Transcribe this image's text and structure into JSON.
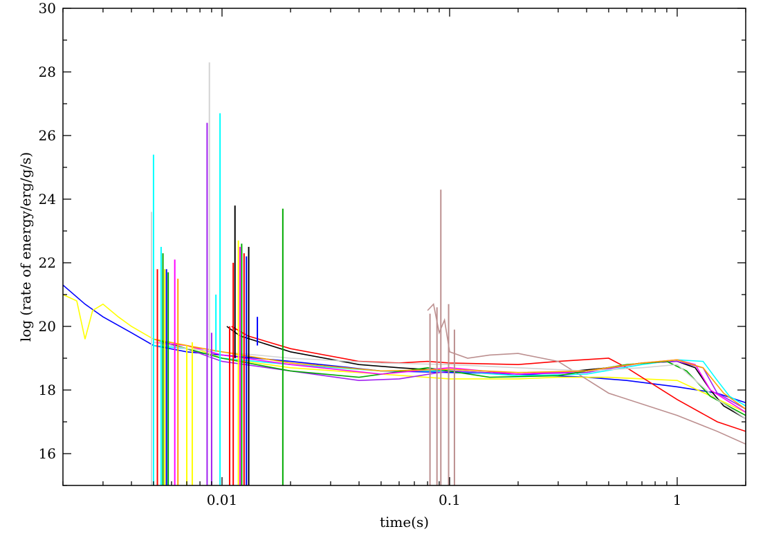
{
  "chart_data": {
    "type": "line",
    "title": "",
    "xlabel": "time(s)",
    "ylabel": "log (rate of energy/erg/g/s)",
    "xscale": "log",
    "xlim": [
      0.002,
      2
    ],
    "ylim": [
      15,
      30
    ],
    "xticks": [
      {
        "value": 0.01,
        "label": "0.01"
      },
      {
        "value": 0.1,
        "label": "0.1"
      },
      {
        "value": 1,
        "label": "1"
      }
    ],
    "yticks": [
      {
        "value": 16,
        "label": "16"
      },
      {
        "value": 18,
        "label": "18"
      },
      {
        "value": 20,
        "label": "20"
      },
      {
        "value": 22,
        "label": "22"
      },
      {
        "value": 24,
        "label": "24"
      },
      {
        "value": 26,
        "label": "26"
      },
      {
        "value": 28,
        "label": "28"
      },
      {
        "value": 30,
        "label": "30"
      }
    ],
    "grid": false,
    "legend": "none",
    "series": [
      {
        "color": "#0000ff",
        "x": [
          0.002,
          0.0025,
          0.003,
          0.004,
          0.005,
          0.007,
          0.01,
          0.02,
          0.05,
          0.1,
          0.2,
          0.4,
          0.6,
          1.0,
          1.5,
          2.0
        ],
        "y": [
          21.3,
          20.7,
          20.3,
          19.8,
          19.4,
          19.2,
          19.1,
          18.9,
          18.6,
          18.55,
          18.5,
          18.4,
          18.3,
          18.1,
          17.9,
          17.6
        ]
      },
      {
        "color": "#ffff00",
        "x": [
          0.002,
          0.0023,
          0.0025,
          0.0027,
          0.003,
          0.0035,
          0.004,
          0.005,
          0.007,
          0.01,
          0.02,
          0.05,
          0.1,
          0.2,
          0.3,
          0.5,
          1.0,
          2.0
        ],
        "y": [
          21.0,
          20.8,
          19.6,
          20.5,
          20.7,
          20.3,
          20.0,
          19.6,
          19.4,
          19.0,
          18.7,
          18.5,
          18.35,
          18.35,
          18.4,
          18.4,
          18.3,
          17.3
        ]
      },
      {
        "color": "#000000",
        "x": [
          0.0105,
          0.012,
          0.02,
          0.04,
          0.06,
          0.1,
          0.2,
          0.3,
          0.5,
          0.7,
          1.0,
          1.2,
          1.4,
          1.6,
          2.0
        ],
        "y": [
          20.0,
          19.7,
          19.2,
          18.8,
          18.7,
          18.6,
          18.5,
          18.55,
          18.7,
          18.85,
          18.9,
          18.7,
          18.0,
          17.5,
          17.1
        ]
      },
      {
        "color": "#ff0000",
        "x": [
          0.011,
          0.013,
          0.02,
          0.04,
          0.06,
          0.08,
          0.1,
          0.2,
          0.3,
          0.5,
          0.6,
          1.0,
          1.5,
          2.0
        ],
        "y": [
          20.0,
          19.7,
          19.3,
          18.9,
          18.85,
          18.9,
          18.85,
          18.8,
          18.9,
          19.0,
          18.7,
          17.7,
          17.0,
          16.7
        ]
      },
      {
        "color": "#bc8f8f",
        "x": [
          0.08,
          0.085,
          0.09,
          0.095,
          0.1,
          0.12,
          0.15,
          0.2,
          0.3,
          0.5,
          1.0,
          1.5,
          2.0
        ],
        "y": [
          20.5,
          20.7,
          19.8,
          20.2,
          19.2,
          19.0,
          19.1,
          19.15,
          18.9,
          17.9,
          17.2,
          16.7,
          16.3
        ]
      },
      {
        "color": "#00ffff",
        "x": [
          0.005,
          0.007,
          0.01,
          0.02,
          0.05,
          0.1,
          0.2,
          0.4,
          0.7,
          1.0,
          1.3,
          1.5,
          1.7,
          2.0
        ],
        "y": [
          19.4,
          19.3,
          19.0,
          18.8,
          18.6,
          18.6,
          18.45,
          18.5,
          18.8,
          18.95,
          18.9,
          18.3,
          17.8,
          17.5
        ]
      },
      {
        "color": "#a020f0",
        "x": [
          0.005,
          0.007,
          0.01,
          0.02,
          0.04,
          0.06,
          0.1,
          0.2,
          0.4,
          0.7,
          1.0,
          1.3,
          1.5,
          2.0
        ],
        "y": [
          19.5,
          19.3,
          18.9,
          18.6,
          18.3,
          18.35,
          18.6,
          18.5,
          18.55,
          18.85,
          18.9,
          18.7,
          17.9,
          17.4
        ]
      },
      {
        "color": "#00aa00",
        "x": [
          0.005,
          0.007,
          0.01,
          0.02,
          0.04,
          0.08,
          0.15,
          0.3,
          0.6,
          0.9,
          1.1,
          1.4,
          2.0
        ],
        "y": [
          19.6,
          19.3,
          19.0,
          18.6,
          18.4,
          18.7,
          18.4,
          18.45,
          18.8,
          18.9,
          18.6,
          17.8,
          17.2
        ]
      },
      {
        "color": "#ff00ff",
        "x": [
          0.005,
          0.007,
          0.01,
          0.02,
          0.05,
          0.1,
          0.2,
          0.4,
          0.7,
          1.0,
          1.2,
          1.4,
          2.0
        ],
        "y": [
          19.5,
          19.4,
          19.1,
          18.8,
          18.5,
          18.7,
          18.5,
          18.6,
          18.85,
          18.95,
          18.8,
          18.0,
          17.3
        ]
      },
      {
        "color": "#d3d3d3",
        "x": [
          0.005,
          0.007,
          0.01,
          0.02,
          0.05,
          0.1,
          0.2,
          0.4,
          0.7,
          1.0,
          1.5,
          2.0
        ],
        "y": [
          19.5,
          19.3,
          19.2,
          19.0,
          18.85,
          18.8,
          18.7,
          18.6,
          18.7,
          18.8,
          17.7,
          17.1
        ]
      },
      {
        "color": "#ffa500",
        "x": [
          0.005,
          0.007,
          0.01,
          0.02,
          0.05,
          0.1,
          0.2,
          0.4,
          0.7,
          1.0,
          1.3,
          1.6,
          2.0
        ],
        "y": [
          19.6,
          19.4,
          19.2,
          18.85,
          18.6,
          18.65,
          18.55,
          18.6,
          18.85,
          18.95,
          18.7,
          17.9,
          17.4
        ]
      }
    ],
    "spikes": [
      {
        "color": "#d3d3d3",
        "x": 0.0049,
        "y1": 15,
        "y2": 23.6
      },
      {
        "color": "#00ffff",
        "x": 0.005,
        "y1": 15,
        "y2": 25.4
      },
      {
        "color": "#ff0000",
        "x": 0.0052,
        "y1": 15,
        "y2": 21.8
      },
      {
        "color": "#00ffff",
        "x": 0.0054,
        "y1": 15,
        "y2": 22.5
      },
      {
        "color": "#00aa00",
        "x": 0.0055,
        "y1": 15,
        "y2": 22.3
      },
      {
        "color": "#ffff00",
        "x": 0.0056,
        "y1": 15,
        "y2": 21.8
      },
      {
        "color": "#0000ff",
        "x": 0.0057,
        "y1": 15,
        "y2": 21.8
      },
      {
        "color": "#00aa00",
        "x": 0.0058,
        "y1": 15,
        "y2": 21.7
      },
      {
        "color": "#ff00ff",
        "x": 0.0062,
        "y1": 15,
        "y2": 22.1
      },
      {
        "color": "#ffa500",
        "x": 0.0064,
        "y1": 15,
        "y2": 21.5
      },
      {
        "color": "#ffff00",
        "x": 0.007,
        "y1": 15,
        "y2": 19.4
      },
      {
        "color": "#ffff00",
        "x": 0.0074,
        "y1": 15,
        "y2": 19.5
      },
      {
        "color": "#a020f0",
        "x": 0.0086,
        "y1": 15,
        "y2": 26.4
      },
      {
        "color": "#d3d3d3",
        "x": 0.0088,
        "y1": 19.0,
        "y2": 28.3
      },
      {
        "color": "#a020f0",
        "x": 0.009,
        "y1": 15,
        "y2": 19.8
      },
      {
        "color": "#00ffff",
        "x": 0.0094,
        "y1": 19.2,
        "y2": 21.0
      },
      {
        "color": "#00ffff",
        "x": 0.0098,
        "y1": 15,
        "y2": 26.7
      },
      {
        "color": "#ff0000",
        "x": 0.0108,
        "y1": 15,
        "y2": 20.0
      },
      {
        "color": "#ff0000",
        "x": 0.0112,
        "y1": 15,
        "y2": 22.0
      },
      {
        "color": "#000000",
        "x": 0.0114,
        "y1": 19.0,
        "y2": 23.8
      },
      {
        "color": "#ffff00",
        "x": 0.0118,
        "y1": 15,
        "y2": 22.7
      },
      {
        "color": "#ff00ff",
        "x": 0.012,
        "y1": 15,
        "y2": 22.5
      },
      {
        "color": "#00aa00",
        "x": 0.0122,
        "y1": 15,
        "y2": 22.6
      },
      {
        "color": "#ff0000",
        "x": 0.0125,
        "y1": 15,
        "y2": 22.3
      },
      {
        "color": "#0000ff",
        "x": 0.0128,
        "y1": 15,
        "y2": 22.2
      },
      {
        "color": "#000000",
        "x": 0.0131,
        "y1": 15,
        "y2": 22.5
      },
      {
        "color": "#0000ff",
        "x": 0.0143,
        "y1": 19.4,
        "y2": 20.3
      },
      {
        "color": "#00aa00",
        "x": 0.0185,
        "y1": 15,
        "y2": 23.7
      },
      {
        "color": "#bc8f8f",
        "x": 0.082,
        "y1": 15,
        "y2": 20.4
      },
      {
        "color": "#bc8f8f",
        "x": 0.088,
        "y1": 15,
        "y2": 20.6
      },
      {
        "color": "#bc8f8f",
        "x": 0.0915,
        "y1": 15,
        "y2": 24.3
      },
      {
        "color": "#bc8f8f",
        "x": 0.099,
        "y1": 15,
        "y2": 20.7
      },
      {
        "color": "#bc8f8f",
        "x": 0.105,
        "y1": 15,
        "y2": 19.9
      }
    ]
  }
}
